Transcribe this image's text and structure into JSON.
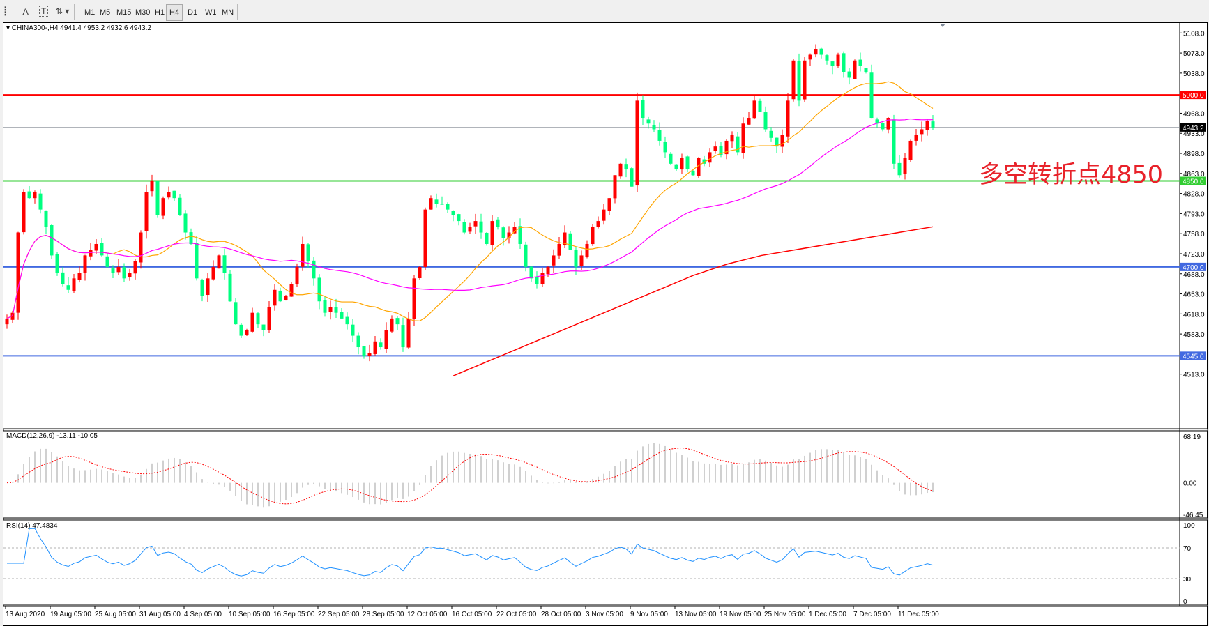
{
  "toolbar": {
    "tools": [
      {
        "icon": "period-separator-icon"
      },
      {
        "icon": "text-a-icon",
        "label": "A"
      },
      {
        "icon": "text-label-icon",
        "label": "T"
      },
      {
        "icon": "arrows-dropdown-icon"
      }
    ],
    "timeframes": [
      "M1",
      "M5",
      "M15",
      "M30",
      "H1",
      "H4",
      "D1",
      "W1",
      "MN"
    ],
    "active_timeframe": "H4"
  },
  "chart": {
    "header": "CHINA300-,H4  4941.4 4953.2 4932.6 4943.2",
    "annotation": "多空转折点4850",
    "price_axis": [
      "5108.0",
      "5073.0",
      "5038.0",
      "4968.0",
      "4933.0",
      "4898.0",
      "4863.0",
      "4828.0",
      "4793.0",
      "4758.0",
      "4723.0",
      "4688.0",
      "4653.0",
      "4618.0",
      "4583.0",
      "4513.0"
    ],
    "levels": [
      {
        "label": "5000.0",
        "value": 5000,
        "color": "#ff0000"
      },
      {
        "label": "4850.0",
        "value": 4850,
        "color": "#32cd32"
      },
      {
        "label": "4700.0",
        "value": 4700,
        "color": "#4169e1"
      },
      {
        "label": "4545.0",
        "value": 4545,
        "color": "#4169e1"
      }
    ],
    "current_price": {
      "label": "4943.2",
      "value": 4943.2
    },
    "date_axis": [
      "13 Aug 2020",
      "19 Aug 05:00",
      "25 Aug 05:00",
      "31 Aug 05:00",
      "4 Sep 05:00",
      "10 Sep 05:00",
      "16 Sep 05:00",
      "22 Sep 05:00",
      "28 Sep 05:00",
      "12 Oct 05:00",
      "16 Oct 05:00",
      "22 Oct 05:00",
      "28 Oct 05:00",
      "3 Nov 05:00",
      "9 Nov 05:00",
      "13 Nov 05:00",
      "19 Nov 05:00",
      "25 Nov 05:00",
      "1 Dec 05:00",
      "7 Dec 05:00",
      "11 Dec 05:00"
    ],
    "colors": {
      "bull": "#ff0000",
      "bear": "#00ff80",
      "ma_fast": "#ffa500",
      "ma_mid": "#ff00ff",
      "ma_slow": "#ff0000"
    }
  },
  "macd": {
    "header": "MACD(12,26,9) -13.11 -10.05",
    "axis": [
      "68.19",
      "0.00",
      "-46.45"
    ],
    "max": 68.19,
    "min": -46.45
  },
  "rsi": {
    "header": "RSI(14) 47.4834",
    "axis": [
      "100",
      "70",
      "30",
      "0"
    ]
  },
  "chart_data": {
    "type": "candlestick",
    "symbol": "CHINA300-",
    "timeframe": "H4",
    "ylim": [
      4513,
      5108
    ],
    "closes": [
      4610,
      4620,
      4760,
      4830,
      4820,
      4830,
      4800,
      4770,
      4720,
      4690,
      4670,
      4660,
      4680,
      4690,
      4720,
      4730,
      4740,
      4720,
      4700,
      4690,
      4700,
      4680,
      4690,
      4710,
      4760,
      4830,
      4850,
      4790,
      4820,
      4830,
      4820,
      4790,
      4760,
      4740,
      4680,
      4650,
      4680,
      4700,
      4720,
      4690,
      4640,
      4600,
      4580,
      4590,
      4620,
      4600,
      4590,
      4630,
      4660,
      4640,
      4650,
      4670,
      4700,
      4740,
      4710,
      4680,
      4640,
      4620,
      4630,
      4620,
      4610,
      4600,
      4580,
      4560,
      4545,
      4550,
      4570,
      4560,
      4590,
      4610,
      4600,
      4560,
      4610,
      4680,
      4700,
      4800,
      4820,
      4810,
      4810,
      4800,
      4790,
      4780,
      4760,
      4770,
      4780,
      4760,
      4740,
      4780,
      4770,
      4750,
      4760,
      4770,
      4740,
      4700,
      4680,
      4670,
      4690,
      4700,
      4720,
      4740,
      4760,
      4730,
      4700,
      4720,
      4740,
      4770,
      4780,
      4800,
      4820,
      4860,
      4880,
      4870,
      4840,
      4990,
      4960,
      4950,
      4940,
      4920,
      4900,
      4880,
      4870,
      4890,
      4870,
      4860,
      4890,
      4880,
      4900,
      4910,
      4895,
      4920,
      4930,
      4900,
      4950,
      4960,
      4990,
      4970,
      4940,
      4925,
      4910,
      4930,
      4990,
      5060,
      4990,
      5060,
      5070,
      5080,
      5070,
      5060,
      5050,
      5070,
      5040,
      5030,
      5060,
      5050,
      5040,
      4960,
      4950,
      4940,
      4960,
      4880,
      4860,
      4890,
      4920,
      4930,
      4940,
      4955,
      4943.2
    ],
    "ma_slow": [
      4510,
      4535,
      4560,
      4585,
      4610,
      4635,
      4660,
      4685,
      4705,
      4720,
      4730,
      4740,
      4750,
      4760,
      4770
    ]
  }
}
